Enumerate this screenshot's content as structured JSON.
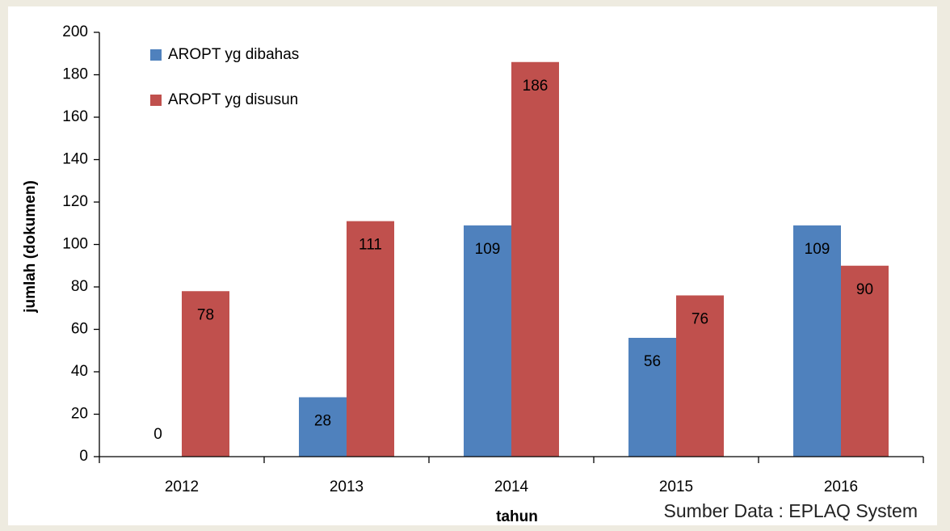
{
  "chart_data": {
    "type": "bar",
    "categories": [
      "2012",
      "2013",
      "2014",
      "2015",
      "2016"
    ],
    "series": [
      {
        "name": "AROPT yg dibahas",
        "color": "#4f81bd",
        "values": [
          0,
          28,
          109,
          56,
          109
        ]
      },
      {
        "name": "AROPT yg disusun",
        "color": "#c0504d",
        "values": [
          78,
          111,
          186,
          76,
          90
        ]
      }
    ],
    "xlabel": "tahun",
    "ylabel": "jumlah (dokumen)",
    "annotation": "Sumber Data : EPLAQ System",
    "ylim": [
      0,
      200
    ],
    "yticks": [
      0,
      20,
      40,
      60,
      80,
      100,
      120,
      140,
      160,
      180,
      200
    ],
    "grid": false,
    "legend": "upper left",
    "data_labels": true
  }
}
